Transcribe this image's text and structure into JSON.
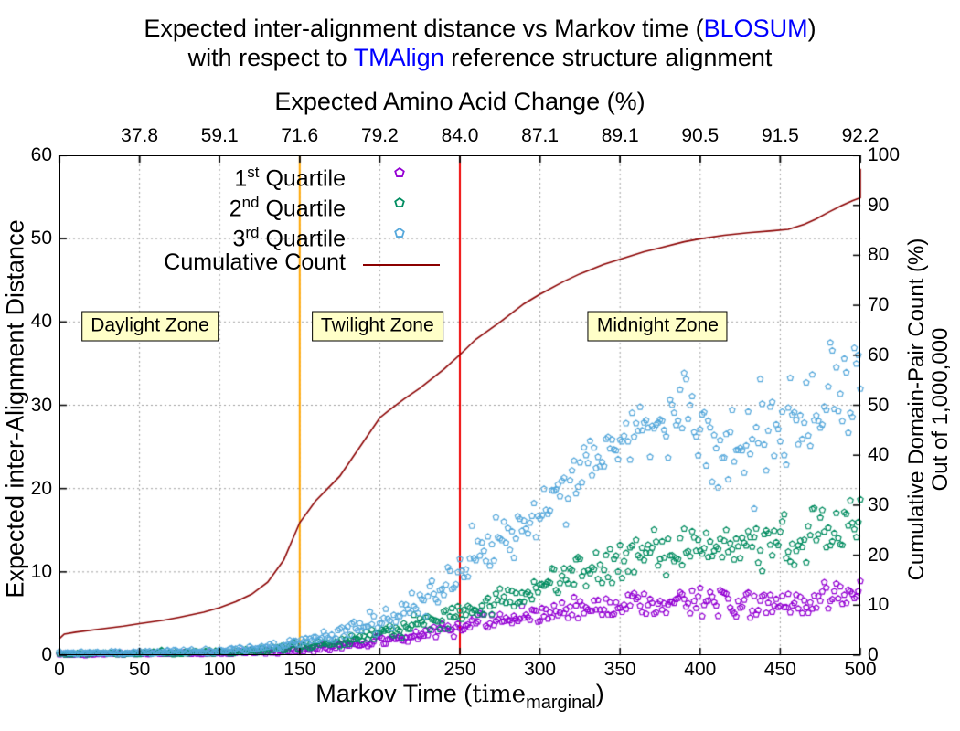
{
  "title": {
    "line1_pre": "Expected inter-alignment distance vs Markov time (",
    "line1_accent": "BLOSUM",
    "line1_post": ")",
    "line2_pre": "with respect to ",
    "line2_accent": "TMAlign",
    "line2_post": " reference structure alignment",
    "accent_color": "#0000FF"
  },
  "axes": {
    "top": {
      "label": "Expected Amino Acid Change (%)",
      "ticks": [
        {
          "t": 50,
          "label": "37.8"
        },
        {
          "t": 100,
          "label": "59.1"
        },
        {
          "t": 150,
          "label": "71.6"
        },
        {
          "t": 200,
          "label": "79.2"
        },
        {
          "t": 250,
          "label": "84.0"
        },
        {
          "t": 300,
          "label": "87.1"
        },
        {
          "t": 350,
          "label": "89.1"
        },
        {
          "t": 400,
          "label": "90.5"
        },
        {
          "t": 450,
          "label": "91.5"
        },
        {
          "t": 500,
          "label": "92.2"
        }
      ]
    },
    "bottom": {
      "label_pre": "Markov Time (",
      "label_serif": "time",
      "label_sub": "marginal",
      "label_post": ")",
      "ticks": [
        {
          "t": 0,
          "label": "0"
        },
        {
          "t": 50,
          "label": "50"
        },
        {
          "t": 100,
          "label": "100"
        },
        {
          "t": 150,
          "label": "150"
        },
        {
          "t": 200,
          "label": "200"
        },
        {
          "t": 250,
          "label": "250"
        },
        {
          "t": 300,
          "label": "300"
        },
        {
          "t": 350,
          "label": "350"
        },
        {
          "t": 400,
          "label": "400"
        },
        {
          "t": 450,
          "label": "450"
        },
        {
          "t": 500,
          "label": "500"
        }
      ]
    },
    "left": {
      "label": "Expected inter-Alignment Distance",
      "ticks": [
        {
          "v": 0,
          "label": "0"
        },
        {
          "v": 10,
          "label": "10"
        },
        {
          "v": 20,
          "label": "20"
        },
        {
          "v": 30,
          "label": "30"
        },
        {
          "v": 40,
          "label": "40"
        },
        {
          "v": 50,
          "label": "50"
        },
        {
          "v": 60,
          "label": "60"
        }
      ]
    },
    "right": {
      "label_line1": "Cumulative Domain-Pair Count (%)",
      "label_line2": "Out of 1,000,000",
      "ticks": [
        {
          "v": 0,
          "label": "0"
        },
        {
          "v": 10,
          "label": "10"
        },
        {
          "v": 20,
          "label": "20"
        },
        {
          "v": 30,
          "label": "30"
        },
        {
          "v": 40,
          "label": "40"
        },
        {
          "v": 50,
          "label": "50"
        },
        {
          "v": 60,
          "label": "60"
        },
        {
          "v": 70,
          "label": "70"
        },
        {
          "v": 80,
          "label": "80"
        },
        {
          "v": 90,
          "label": "90"
        },
        {
          "v": 100,
          "label": "100"
        }
      ]
    }
  },
  "legend": [
    {
      "prefix": "1",
      "sup": "st",
      "rest": " Quartile",
      "marker": "pentagon",
      "color": "#9400D3"
    },
    {
      "prefix": "2",
      "sup": "nd",
      "rest": " Quartile",
      "marker": "pentagon",
      "color": "#008C60"
    },
    {
      "prefix": "3",
      "sup": "rd",
      "rest": " Quartile",
      "marker": "pentagon",
      "color": "#56A8DB"
    },
    {
      "prefix": "Cumulative Count",
      "sup": "",
      "rest": "",
      "marker": "line",
      "color": "#8B0000"
    }
  ],
  "zones": [
    {
      "label": "Daylight Zone",
      "t_center": 56.5,
      "axis_y": 39.5
    },
    {
      "label": "Twilight Zone",
      "t_center": 198.5,
      "axis_y": 39.5
    },
    {
      "label": "Midnight Zone",
      "t_center": 373.5,
      "axis_y": 39.5
    }
  ],
  "chart_data": {
    "type": "scatter",
    "x_range": [
      0,
      500
    ],
    "y_left_range": [
      0,
      60
    ],
    "y_right_range": [
      0,
      100
    ],
    "x_grid_step": 50,
    "y_grid_step": 10,
    "grid_color": "#9e9e9e",
    "grid_dash": [
      2,
      3
    ],
    "point_step": 1.25,
    "marker": "open-pentagon",
    "marker_radius": 3.3,
    "vlines": [
      {
        "t": 150,
        "color": "#FFA500",
        "name": "daylight-twilight-boundary"
      },
      {
        "t": 250,
        "color": "#EE0000",
        "name": "twilight-midnight-boundary"
      }
    ],
    "cumulative": {
      "name": "Cumulative Count",
      "color": "#8B0000",
      "axis": "right",
      "points": [
        [
          0,
          3.3
        ],
        [
          3,
          4.2
        ],
        [
          10,
          4.6
        ],
        [
          25,
          5.2
        ],
        [
          40,
          5.8
        ],
        [
          50,
          6.3
        ],
        [
          65,
          7.0
        ],
        [
          75,
          7.6
        ],
        [
          90,
          8.6
        ],
        [
          100,
          9.5
        ],
        [
          110,
          10.7
        ],
        [
          120,
          12.2
        ],
        [
          130,
          14.6
        ],
        [
          140,
          19.0
        ],
        [
          150,
          26.5
        ],
        [
          160,
          30.9
        ],
        [
          175,
          35.8
        ],
        [
          200,
          47.5
        ],
        [
          205,
          48.8
        ],
        [
          215,
          51.2
        ],
        [
          225,
          53.4
        ],
        [
          240,
          57.2
        ],
        [
          250,
          60.1
        ],
        [
          260,
          63.2
        ],
        [
          275,
          66.6
        ],
        [
          290,
          70.3
        ],
        [
          300,
          72.2
        ],
        [
          315,
          74.8
        ],
        [
          325,
          76.3
        ],
        [
          340,
          78.2
        ],
        [
          350,
          79.2
        ],
        [
          365,
          80.7
        ],
        [
          375,
          81.5
        ],
        [
          390,
          82.7
        ],
        [
          400,
          83.3
        ],
        [
          415,
          84.0
        ],
        [
          430,
          84.5
        ],
        [
          445,
          84.9
        ],
        [
          455,
          85.2
        ],
        [
          465,
          86.2
        ],
        [
          472,
          87.2
        ],
        [
          480,
          88.6
        ],
        [
          488,
          89.9
        ],
        [
          495,
          90.9
        ],
        [
          500,
          91.5
        ],
        [
          500,
          97.3
        ]
      ]
    },
    "series": [
      {
        "name": "1st Quartile",
        "color": "#9400D3",
        "seed": 101,
        "axis": "left",
        "trend": [
          [
            0,
            0.1
          ],
          [
            100,
            0.25
          ],
          [
            125,
            0.4
          ],
          [
            150,
            0.7
          ],
          [
            170,
            1.0
          ],
          [
            185,
            1.35
          ],
          [
            200,
            1.8
          ],
          [
            215,
            2.25
          ],
          [
            230,
            2.75
          ],
          [
            245,
            3.3
          ],
          [
            260,
            3.85
          ],
          [
            275,
            4.3
          ],
          [
            290,
            4.7
          ],
          [
            305,
            5.0
          ],
          [
            320,
            5.4
          ],
          [
            335,
            5.7
          ],
          [
            350,
            6.0
          ],
          [
            370,
            6.2
          ],
          [
            390,
            6.35
          ],
          [
            410,
            6.3
          ],
          [
            430,
            6.15
          ],
          [
            450,
            6.25
          ],
          [
            470,
            6.6
          ],
          [
            485,
            6.9
          ],
          [
            500,
            7.2
          ]
        ],
        "jitter": [
          [
            0,
            0.06
          ],
          [
            100,
            0.12
          ],
          [
            150,
            0.25
          ],
          [
            200,
            0.45
          ],
          [
            250,
            0.7
          ],
          [
            300,
            0.9
          ],
          [
            350,
            1.05
          ],
          [
            400,
            1.2
          ],
          [
            450,
            1.35
          ],
          [
            500,
            1.5
          ]
        ]
      },
      {
        "name": "2nd Quartile",
        "color": "#008C60",
        "seed": 202,
        "axis": "left",
        "trend": [
          [
            0,
            0.15
          ],
          [
            80,
            0.25
          ],
          [
            110,
            0.45
          ],
          [
            130,
            0.65
          ],
          [
            150,
            1.0
          ],
          [
            170,
            1.5
          ],
          [
            185,
            2.0
          ],
          [
            200,
            2.6
          ],
          [
            215,
            3.2
          ],
          [
            230,
            3.9
          ],
          [
            245,
            4.7
          ],
          [
            255,
            5.4
          ],
          [
            270,
            6.3
          ],
          [
            285,
            7.3
          ],
          [
            300,
            8.2
          ],
          [
            315,
            9.3
          ],
          [
            330,
            10.5
          ],
          [
            345,
            11.2
          ],
          [
            360,
            11.9
          ],
          [
            375,
            12.2
          ],
          [
            390,
            12.6
          ],
          [
            405,
            12.8
          ],
          [
            420,
            13.1
          ],
          [
            435,
            13.4
          ],
          [
            450,
            13.8
          ],
          [
            465,
            14.2
          ],
          [
            480,
            14.8
          ],
          [
            492,
            15.3
          ],
          [
            500,
            15.6
          ]
        ],
        "jitter": [
          [
            0,
            0.08
          ],
          [
            100,
            0.15
          ],
          [
            150,
            0.3
          ],
          [
            200,
            0.55
          ],
          [
            250,
            0.9
          ],
          [
            300,
            1.3
          ],
          [
            350,
            1.7
          ],
          [
            400,
            2.0
          ],
          [
            450,
            2.3
          ],
          [
            500,
            2.6
          ]
        ]
      },
      {
        "name": "3rd Quartile",
        "color": "#56A8DB",
        "seed": 303,
        "axis": "left",
        "trend": [
          [
            0,
            0.25
          ],
          [
            60,
            0.3
          ],
          [
            90,
            0.45
          ],
          [
            110,
            0.65
          ],
          [
            130,
            1.0
          ],
          [
            150,
            1.5
          ],
          [
            165,
            2.1
          ],
          [
            180,
            2.8
          ],
          [
            195,
            3.5
          ],
          [
            205,
            4.3
          ],
          [
            215,
            5.2
          ],
          [
            228,
            6.5
          ],
          [
            240,
            8.2
          ],
          [
            250,
            10.2
          ],
          [
            262,
            11.8
          ],
          [
            275,
            13.6
          ],
          [
            288,
            15.2
          ],
          [
            300,
            16.8
          ],
          [
            312,
            19.0
          ],
          [
            322,
            21.0
          ],
          [
            332,
            22.8
          ],
          [
            342,
            23.8
          ],
          [
            352,
            25.2
          ],
          [
            362,
            26.8
          ],
          [
            372,
            27.4
          ],
          [
            382,
            28.0
          ],
          [
            392,
            28.8
          ],
          [
            400,
            26.5
          ],
          [
            410,
            25.0
          ],
          [
            420,
            24.2
          ],
          [
            432,
            24.6
          ],
          [
            442,
            25.6
          ],
          [
            452,
            27.2
          ],
          [
            462,
            28.4
          ],
          [
            472,
            30.0
          ],
          [
            482,
            31.2
          ],
          [
            492,
            32.4
          ],
          [
            500,
            34.0
          ]
        ],
        "jitter": [
          [
            0,
            0.12
          ],
          [
            100,
            0.2
          ],
          [
            150,
            0.35
          ],
          [
            200,
            0.9
          ],
          [
            250,
            1.6
          ],
          [
            300,
            2.4
          ],
          [
            350,
            2.8
          ],
          [
            400,
            3.4
          ],
          [
            450,
            3.8
          ],
          [
            500,
            4.2
          ]
        ]
      }
    ]
  }
}
